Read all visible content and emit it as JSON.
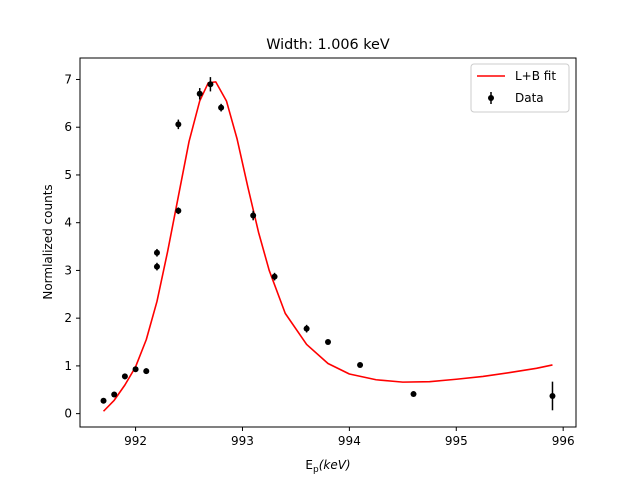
{
  "chart_data": {
    "type": "scatter",
    "title": "Width: 1.006 keV",
    "xlabel": "E",
    "xlabel_sub": "p",
    "xlabel_unit": "(keV)",
    "ylabel": "Normlalized counts",
    "xlim": [
      991.48,
      996.12
    ],
    "ylim": [
      -0.28,
      7.45
    ],
    "xticks": [
      992,
      993,
      994,
      995,
      996
    ],
    "yticks": [
      0,
      1,
      2,
      3,
      4,
      5,
      6,
      7
    ],
    "legend_position": "top-right",
    "legend": [
      {
        "label": "L+B fit",
        "kind": "line",
        "color": "#ff0000"
      },
      {
        "label": "Data",
        "kind": "errorbar",
        "color": "#000000"
      }
    ],
    "series": [
      {
        "name": "Data",
        "kind": "errorbar",
        "color": "#000000",
        "points": [
          {
            "x": 991.7,
            "y": 0.27,
            "err": 0.05
          },
          {
            "x": 991.8,
            "y": 0.4,
            "err": 0.05
          },
          {
            "x": 991.9,
            "y": 0.78,
            "err": 0.06
          },
          {
            "x": 992.0,
            "y": 0.93,
            "err": 0.05
          },
          {
            "x": 992.1,
            "y": 0.89,
            "err": 0.06
          },
          {
            "x": 992.2,
            "y": 3.37,
            "err": 0.08
          },
          {
            "x": 992.2,
            "y": 3.08,
            "err": 0.08
          },
          {
            "x": 992.4,
            "y": 6.06,
            "err": 0.1
          },
          {
            "x": 992.4,
            "y": 4.25,
            "err": 0.07
          },
          {
            "x": 992.6,
            "y": 6.7,
            "err": 0.12
          },
          {
            "x": 992.7,
            "y": 6.9,
            "err": 0.15
          },
          {
            "x": 992.8,
            "y": 6.41,
            "err": 0.08
          },
          {
            "x": 993.1,
            "y": 4.15,
            "err": 0.1
          },
          {
            "x": 993.3,
            "y": 2.87,
            "err": 0.08
          },
          {
            "x": 993.6,
            "y": 1.78,
            "err": 0.08
          },
          {
            "x": 993.8,
            "y": 1.5,
            "err": 0.04
          },
          {
            "x": 994.1,
            "y": 1.02,
            "err": 0.05
          },
          {
            "x": 994.6,
            "y": 0.41,
            "err": 0.04
          },
          {
            "x": 995.9,
            "y": 0.37,
            "err": 0.3
          }
        ]
      },
      {
        "name": "L+B fit",
        "kind": "line",
        "color": "#ff0000",
        "points": [
          {
            "x": 991.7,
            "y": 0.05
          },
          {
            "x": 991.8,
            "y": 0.28
          },
          {
            "x": 991.9,
            "y": 0.6
          },
          {
            "x": 992.0,
            "y": 0.98
          },
          {
            "x": 992.1,
            "y": 1.55
          },
          {
            "x": 992.2,
            "y": 2.35
          },
          {
            "x": 992.3,
            "y": 3.4
          },
          {
            "x": 992.4,
            "y": 4.55
          },
          {
            "x": 992.5,
            "y": 5.7
          },
          {
            "x": 992.6,
            "y": 6.55
          },
          {
            "x": 992.68,
            "y": 6.93
          },
          {
            "x": 992.75,
            "y": 6.95
          },
          {
            "x": 992.85,
            "y": 6.55
          },
          {
            "x": 992.95,
            "y": 5.75
          },
          {
            "x": 993.05,
            "y": 4.75
          },
          {
            "x": 993.15,
            "y": 3.8
          },
          {
            "x": 993.25,
            "y": 3.0
          },
          {
            "x": 993.4,
            "y": 2.1
          },
          {
            "x": 993.6,
            "y": 1.45
          },
          {
            "x": 993.8,
            "y": 1.05
          },
          {
            "x": 994.0,
            "y": 0.83
          },
          {
            "x": 994.25,
            "y": 0.71
          },
          {
            "x": 994.5,
            "y": 0.66
          },
          {
            "x": 994.75,
            "y": 0.67
          },
          {
            "x": 995.0,
            "y": 0.72
          },
          {
            "x": 995.25,
            "y": 0.78
          },
          {
            "x": 995.5,
            "y": 0.86
          },
          {
            "x": 995.75,
            "y": 0.95
          },
          {
            "x": 995.9,
            "y": 1.02
          }
        ]
      }
    ]
  }
}
